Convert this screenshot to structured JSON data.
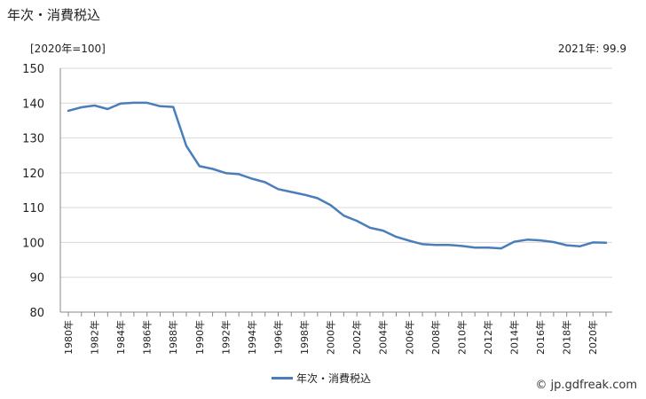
{
  "title": "年次・消費税込",
  "unit_label": "[2020年=100]",
  "latest_note": "2021年: 99.9",
  "source": "© jp.gdfreak.com",
  "colors": {
    "line": "#4a7ebb",
    "grid": "#d9d9d9",
    "axis": "#888888"
  },
  "chart_data": {
    "type": "line",
    "ylim": [
      80,
      150
    ],
    "yticks": [
      "80",
      "90",
      "100",
      "110",
      "120",
      "130",
      "140",
      "150"
    ],
    "xtick_labels": [
      "1980年",
      "1982年",
      "1984年",
      "1986年",
      "1988年",
      "1990年",
      "1992年",
      "1994年",
      "1996年",
      "1998年",
      "2000年",
      "2002年",
      "2004年",
      "2006年",
      "2008年",
      "2010年",
      "2012年",
      "2014年",
      "2016年",
      "2018年",
      "2020年"
    ],
    "legend_position": "bottom",
    "series": [
      {
        "name": "年次・消費税込",
        "x": [
          1980,
          1981,
          1982,
          1983,
          1984,
          1985,
          1986,
          1987,
          1988,
          1989,
          1990,
          1991,
          1992,
          1993,
          1994,
          1995,
          1996,
          1997,
          1998,
          1999,
          2000,
          2001,
          2002,
          2003,
          2004,
          2005,
          2006,
          2007,
          2008,
          2009,
          2010,
          2011,
          2012,
          2013,
          2014,
          2015,
          2016,
          2017,
          2018,
          2019,
          2020,
          2021
        ],
        "values": [
          137.8,
          138.8,
          139.3,
          138.3,
          139.9,
          140.1,
          140.1,
          139.1,
          138.9,
          127.7,
          121.9,
          121.1,
          119.9,
          119.6,
          118.3,
          117.3,
          115.3,
          114.5,
          113.7,
          112.7,
          110.7,
          107.7,
          106.2,
          104.2,
          103.4,
          101.6,
          100.5,
          99.5,
          99.3,
          99.3,
          99.0,
          98.5,
          98.5,
          98.3,
          100.2,
          100.8,
          100.6,
          100.1,
          99.2,
          98.9,
          100.0,
          99.9
        ]
      }
    ]
  }
}
